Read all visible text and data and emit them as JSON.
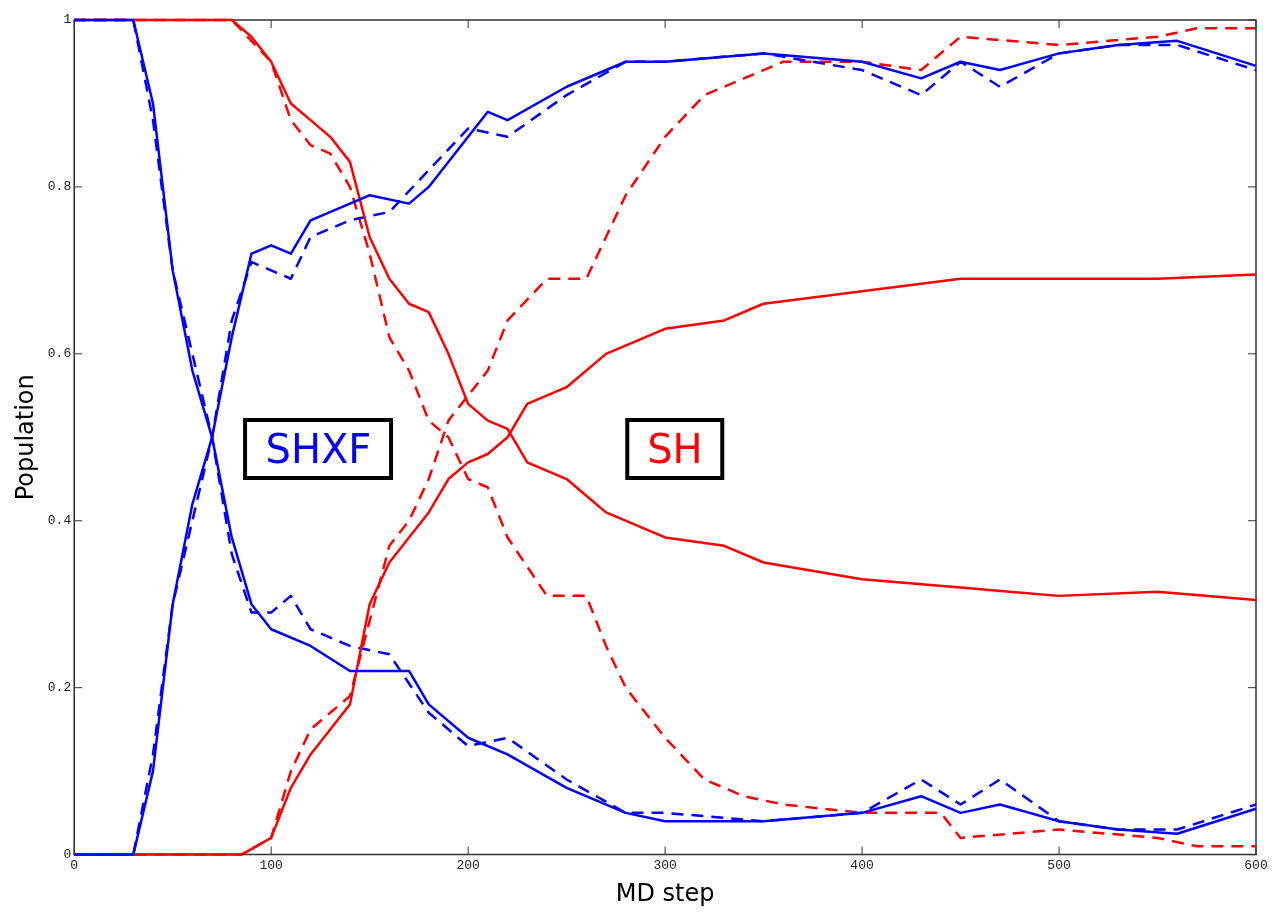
{
  "chart_data": {
    "type": "line",
    "xlabel": "MD step",
    "ylabel": "Population",
    "xlim": [
      0,
      600
    ],
    "xticks": [
      0,
      100,
      200,
      300,
      400,
      500,
      600
    ],
    "ylim": [
      0,
      1
    ],
    "yticks": [
      0,
      0.2,
      0.4,
      0.6,
      0.8,
      1
    ],
    "marker": "none",
    "legend": false,
    "series": [
      {
        "name": "SHXF",
        "color": "#0000ff",
        "line_style": "solid",
        "x": [
          0,
          30,
          40,
          50,
          60,
          70,
          80,
          90,
          100,
          120,
          140,
          150,
          170,
          180,
          200,
          220,
          250,
          280,
          300,
          350,
          400,
          430,
          450,
          470,
          500,
          530,
          560,
          580,
          600
        ],
        "values": [
          1,
          1,
          0.9,
          0.7,
          0.58,
          0.5,
          0.38,
          0.3,
          0.27,
          0.25,
          0.22,
          0.22,
          0.22,
          0.18,
          0.14,
          0.12,
          0.08,
          0.05,
          0.04,
          0.04,
          0.05,
          0.07,
          0.05,
          0.06,
          0.04,
          0.03,
          0.025,
          0.04,
          0.055
        ]
      },
      {
        "color": "#0000ff",
        "line_style": "solid",
        "x": [
          0,
          30,
          40,
          50,
          60,
          70,
          80,
          90,
          100,
          110,
          120,
          140,
          150,
          170,
          180,
          200,
          210,
          220,
          250,
          280,
          300,
          350,
          400,
          430,
          450,
          470,
          500,
          530,
          560,
          580,
          600
        ],
        "values": [
          0,
          0,
          0.1,
          0.3,
          0.42,
          0.5,
          0.62,
          0.72,
          0.73,
          0.72,
          0.76,
          0.78,
          0.79,
          0.78,
          0.8,
          0.86,
          0.89,
          0.88,
          0.92,
          0.95,
          0.95,
          0.96,
          0.95,
          0.93,
          0.95,
          0.94,
          0.96,
          0.97,
          0.975,
          0.96,
          0.945
        ]
      },
      {
        "color": "#0000ff",
        "line_style": "dashed",
        "x": [
          0,
          30,
          40,
          50,
          60,
          70,
          80,
          90,
          100,
          110,
          120,
          140,
          160,
          180,
          200,
          220,
          250,
          280,
          300,
          350,
          400,
          430,
          450,
          470,
          500,
          530,
          560,
          600
        ],
        "values": [
          1,
          1,
          0.88,
          0.7,
          0.6,
          0.5,
          0.36,
          0.29,
          0.29,
          0.31,
          0.27,
          0.25,
          0.24,
          0.17,
          0.13,
          0.14,
          0.09,
          0.05,
          0.05,
          0.04,
          0.05,
          0.09,
          0.06,
          0.09,
          0.04,
          0.03,
          0.03,
          0.06
        ]
      },
      {
        "color": "#0000ff",
        "line_style": "dashed",
        "x": [
          0,
          30,
          40,
          50,
          60,
          70,
          80,
          90,
          100,
          110,
          120,
          140,
          160,
          180,
          200,
          220,
          250,
          280,
          300,
          350,
          400,
          430,
          450,
          470,
          500,
          530,
          560,
          600
        ],
        "values": [
          0,
          0,
          0.12,
          0.3,
          0.4,
          0.5,
          0.64,
          0.71,
          0.7,
          0.69,
          0.74,
          0.76,
          0.77,
          0.82,
          0.87,
          0.86,
          0.91,
          0.95,
          0.95,
          0.96,
          0.94,
          0.91,
          0.95,
          0.92,
          0.96,
          0.97,
          0.97,
          0.94
        ]
      },
      {
        "name": "SH",
        "color": "#ff0000",
        "line_style": "solid",
        "x": [
          0,
          80,
          90,
          100,
          110,
          120,
          130,
          140,
          150,
          160,
          170,
          180,
          190,
          200,
          210,
          220,
          230,
          250,
          270,
          300,
          330,
          350,
          400,
          450,
          500,
          550,
          600
        ],
        "values": [
          1,
          1,
          0.98,
          0.95,
          0.9,
          0.88,
          0.86,
          0.83,
          0.74,
          0.69,
          0.66,
          0.65,
          0.6,
          0.54,
          0.52,
          0.51,
          0.47,
          0.45,
          0.41,
          0.38,
          0.37,
          0.35,
          0.33,
          0.32,
          0.31,
          0.315,
          0.305
        ]
      },
      {
        "color": "#ff0000",
        "line_style": "solid",
        "x": [
          0,
          85,
          100,
          110,
          120,
          130,
          140,
          145,
          150,
          160,
          170,
          180,
          190,
          200,
          210,
          220,
          230,
          250,
          270,
          300,
          330,
          350,
          400,
          450,
          500,
          550,
          600
        ],
        "values": [
          0,
          0,
          0.02,
          0.08,
          0.12,
          0.15,
          0.18,
          0.24,
          0.3,
          0.35,
          0.38,
          0.41,
          0.45,
          0.47,
          0.48,
          0.5,
          0.54,
          0.56,
          0.6,
          0.63,
          0.64,
          0.66,
          0.675,
          0.69,
          0.69,
          0.69,
          0.695
        ]
      },
      {
        "color": "#ff0000",
        "line_style": "dashed",
        "x": [
          0,
          80,
          100,
          110,
          120,
          130,
          140,
          150,
          160,
          170,
          180,
          190,
          200,
          210,
          220,
          240,
          260,
          270,
          280,
          300,
          320,
          340,
          360,
          400,
          440,
          450,
          500,
          550,
          570,
          600
        ],
        "values": [
          1,
          1,
          0.95,
          0.88,
          0.85,
          0.84,
          0.8,
          0.72,
          0.62,
          0.58,
          0.52,
          0.5,
          0.45,
          0.44,
          0.38,
          0.31,
          0.31,
          0.25,
          0.2,
          0.14,
          0.09,
          0.07,
          0.06,
          0.05,
          0.05,
          0.02,
          0.03,
          0.02,
          0.01,
          0.01
        ]
      },
      {
        "color": "#ff0000",
        "line_style": "dashed",
        "x": [
          0,
          85,
          100,
          110,
          120,
          130,
          140,
          150,
          160,
          170,
          180,
          190,
          200,
          210,
          220,
          240,
          260,
          270,
          280,
          300,
          320,
          340,
          360,
          400,
          430,
          450,
          500,
          550,
          570,
          600
        ],
        "values": [
          0,
          0,
          0.02,
          0.1,
          0.15,
          0.17,
          0.19,
          0.28,
          0.37,
          0.4,
          0.45,
          0.52,
          0.55,
          0.58,
          0.64,
          0.69,
          0.69,
          0.74,
          0.79,
          0.86,
          0.91,
          0.93,
          0.95,
          0.95,
          0.94,
          0.98,
          0.97,
          0.98,
          0.99,
          0.99
        ]
      }
    ]
  }
}
